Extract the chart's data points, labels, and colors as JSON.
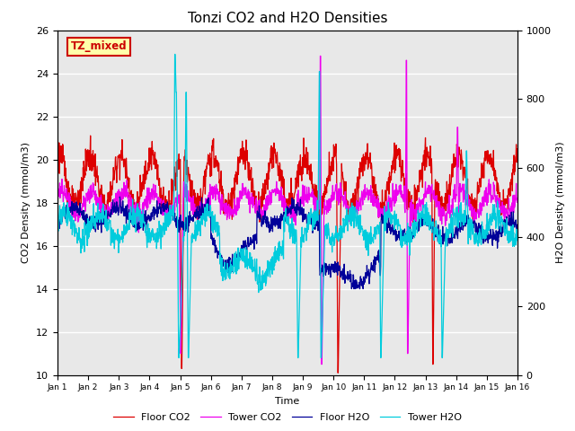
{
  "title": "Tonzi CO2 and H2O Densities",
  "xlabel": "Time",
  "ylabel_left": "CO2 Density (mmol/m3)",
  "ylabel_right": "H2O Density (mmol/m3)",
  "ylim_left": [
    10,
    26
  ],
  "ylim_right": [
    0,
    1000
  ],
  "xlim": [
    0,
    15
  ],
  "x_tick_labels": [
    "Jan 1",
    "Jan 2",
    "Jan 3",
    "Jan 4",
    "Jan 5",
    "Jan 6",
    "Jan 7",
    "Jan 8",
    "Jan 9",
    "Jan 10",
    "Jan 11",
    "Jan 12",
    "Jan 13",
    "Jan 14",
    "Jan 15",
    "Jan 16"
  ],
  "colors": {
    "floor_co2": "#dd0000",
    "tower_co2": "#ee00ee",
    "floor_h2o": "#000099",
    "tower_h2o": "#00ccdd"
  },
  "legend_labels": [
    "Floor CO2",
    "Tower CO2",
    "Floor H2O",
    "Tower H2O"
  ],
  "annotation_text": "TZ_mixed",
  "annotation_color": "#cc0000",
  "annotation_bg": "#ffffaa",
  "bg_color": "#e8e8e8",
  "n_points": 1440,
  "title_fontsize": 11
}
